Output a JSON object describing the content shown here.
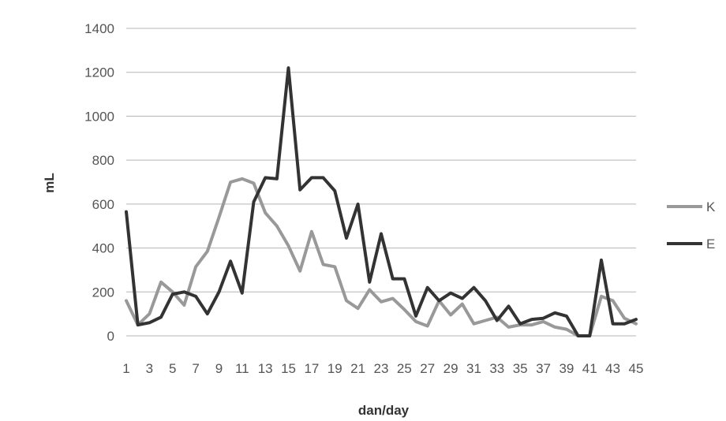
{
  "chart_data": {
    "type": "line",
    "xlabel": "dan/day",
    "ylabel": "mL",
    "ylim": [
      0,
      1400
    ],
    "yticks": [
      0,
      200,
      400,
      600,
      800,
      1000,
      1200,
      1400
    ],
    "grid": "horizontal",
    "legend_position": "right",
    "x_tick_labels": [
      "1",
      "3",
      "5",
      "7",
      "9",
      "11",
      "13",
      "15",
      "17",
      "19",
      "21",
      "23",
      "25",
      "27",
      "29",
      "31",
      "33",
      "35",
      "37",
      "39",
      "41",
      "43",
      "45"
    ],
    "x": [
      1,
      2,
      3,
      4,
      5,
      6,
      7,
      8,
      9,
      10,
      11,
      12,
      13,
      14,
      15,
      16,
      17,
      18,
      19,
      20,
      21,
      22,
      23,
      24,
      25,
      26,
      27,
      28,
      29,
      30,
      31,
      32,
      33,
      34,
      35,
      36,
      37,
      38,
      39,
      40,
      41,
      42,
      43,
      44,
      45
    ],
    "series": [
      {
        "name": "K",
        "color": "#999999",
        "values": [
          160,
          50,
          100,
          245,
          200,
          140,
          315,
          385,
          540,
          700,
          715,
          695,
          560,
          500,
          410,
          295,
          475,
          325,
          315,
          160,
          125,
          210,
          155,
          170,
          120,
          65,
          45,
          160,
          95,
          145,
          55,
          70,
          85,
          40,
          50,
          50,
          65,
          40,
          30,
          0,
          0,
          180,
          160,
          80,
          55
        ]
      },
      {
        "name": "E",
        "color": "#333333",
        "values": [
          565,
          50,
          60,
          85,
          190,
          200,
          180,
          100,
          200,
          340,
          195,
          610,
          720,
          715,
          1220,
          665,
          720,
          720,
          660,
          445,
          600,
          245,
          465,
          260,
          260,
          90,
          220,
          160,
          195,
          170,
          220,
          160,
          70,
          135,
          55,
          75,
          80,
          105,
          90,
          0,
          0,
          345,
          55,
          55,
          75
        ]
      }
    ]
  }
}
